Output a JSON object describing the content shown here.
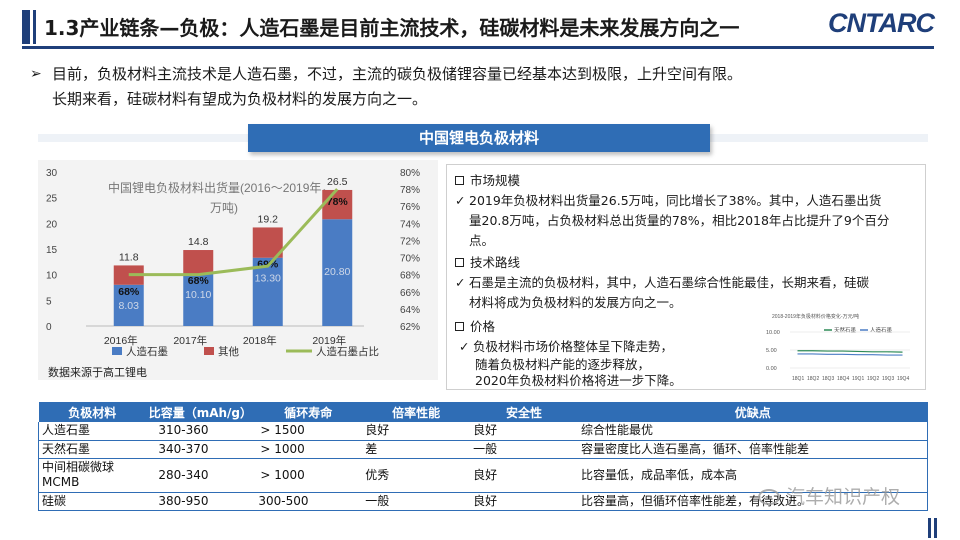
{
  "header": {
    "title": "1.3产业链条—负极：人造石墨是目前主流技术，硅碳材料是未来发展方向之一",
    "logo_text": "CNTARC"
  },
  "intro": {
    "bullet": "➢",
    "line1": "目前，负极材料主流技术是人造石墨，不过，主流的碳负极储锂容量已经基本达到极限，上升空间有限。",
    "line2": "长期来看，硅碳材料有望成为负极材料的发展方向之一。"
  },
  "panel": {
    "title": "中国锂电负极材料"
  },
  "chart_data": {
    "type": "bar",
    "title": "中国锂电负极材料出货量(2016～2019年，万吨)",
    "title_line1": "中国锂电负极材料出货量(2016～2019年，",
    "title_line2": "万吨)",
    "categories": [
      "2016年",
      "2017年",
      "2018年",
      "2019年"
    ],
    "series": [
      {
        "name": "人造石墨",
        "values": [
          8.03,
          10.1,
          13.3,
          20.8
        ],
        "labels": [
          "8.03",
          "10.10",
          "13.30",
          "20.80"
        ],
        "color": "#4a7cc4"
      },
      {
        "name": "其他",
        "values": [
          3.77,
          4.7,
          5.9,
          5.7
        ],
        "color": "#c0504d"
      },
      {
        "name": "人造石墨占比",
        "values": [
          68,
          68,
          69,
          78
        ],
        "labels": [
          "68%",
          "68%",
          "69%",
          "78%"
        ],
        "axis": "right",
        "color": "#9bbb59"
      }
    ],
    "totals": [
      11.8,
      14.8,
      19.2,
      26.5
    ],
    "totals_labels": [
      "11.8",
      "14.8",
      "19.2",
      "26.5"
    ],
    "ylim": [
      0,
      30
    ],
    "yticks": [
      "0",
      "5",
      "10",
      "15",
      "20",
      "25",
      "30"
    ],
    "y2lim": [
      62,
      80
    ],
    "y2ticks": [
      "62%",
      "64%",
      "66%",
      "68%",
      "70%",
      "72%",
      "74%",
      "76%",
      "78%",
      "80%"
    ],
    "legend_position": "bottom"
  },
  "chart_source": "数据来源于高工锂电",
  "info": {
    "s1_title": "市场规模",
    "s1_l1": "2019年负极材料出货量26.5万吨，同比增长了38%。其中，人造石墨出货",
    "s1_l2": "量20.8万吨，占负极材料总出货量的78%，相比2018年占比提升了9个百分",
    "s1_l3": "点。",
    "s2_title": "技术路线",
    "s2_l1": "石墨是主流的负极材料，其中，人造石墨综合性能最佳，长期来看，硅碳",
    "s2_l2": "材料将成为负极材料的发展方向之一。",
    "s3_title": "价格",
    "s3_l1": "负极材料市场价格整体呈下降走势，",
    "s3_l2": "随着负极材料产能的逐步释放，",
    "s3_l3": "2020年负极材料价格将进一步下降。",
    "check": "✓"
  },
  "mini_chart": {
    "title": "2018-2019年负极材料价格变化-万元/吨",
    "series": [
      {
        "name": "天然石墨",
        "color": "#2e8b57",
        "values": [
          4.8,
          4.8,
          4.7,
          4.7,
          4.6,
          4.5,
          4.5,
          4.4
        ]
      },
      {
        "name": "人造石墨",
        "color": "#4a7cc4",
        "values": [
          3.9,
          3.9,
          3.8,
          3.8,
          3.7,
          3.7,
          3.6,
          3.6
        ]
      }
    ],
    "yticks": [
      "10.00",
      "5.00",
      "0.00"
    ],
    "ylim": [
      0,
      10
    ],
    "categories": [
      "18Q1",
      "18Q2",
      "18Q3",
      "18Q4",
      "19Q1",
      "19Q2",
      "19Q3",
      "19Q4"
    ]
  },
  "table": {
    "headers": [
      "负极材料",
      "比容量（mAh/g）",
      "循环寿命",
      "倍率性能",
      "安全性",
      "优缺点"
    ],
    "rows": [
      [
        "人造石墨",
        "310-360",
        "> 1500",
        "良好",
        "良好",
        "综合性能最优"
      ],
      [
        "天然石墨",
        "340-370",
        "> 1000",
        "差",
        "一般",
        "容量密度比人造石墨高，循环、倍率性能差"
      ],
      [
        "中间相碳微球MCMB",
        "280-340",
        "> 1000",
        "优秀",
        "良好",
        "比容量低，成品率低，成本高"
      ],
      [
        "硅碳",
        "380-950",
        "300-500",
        "一般",
        "良好",
        "比容量高，但循环倍率性能差，有待改进。"
      ]
    ],
    "row3_name_l1": "中间相碳微球",
    "row3_name_l2": "MCMB"
  },
  "watermark": "汽车知识产权"
}
